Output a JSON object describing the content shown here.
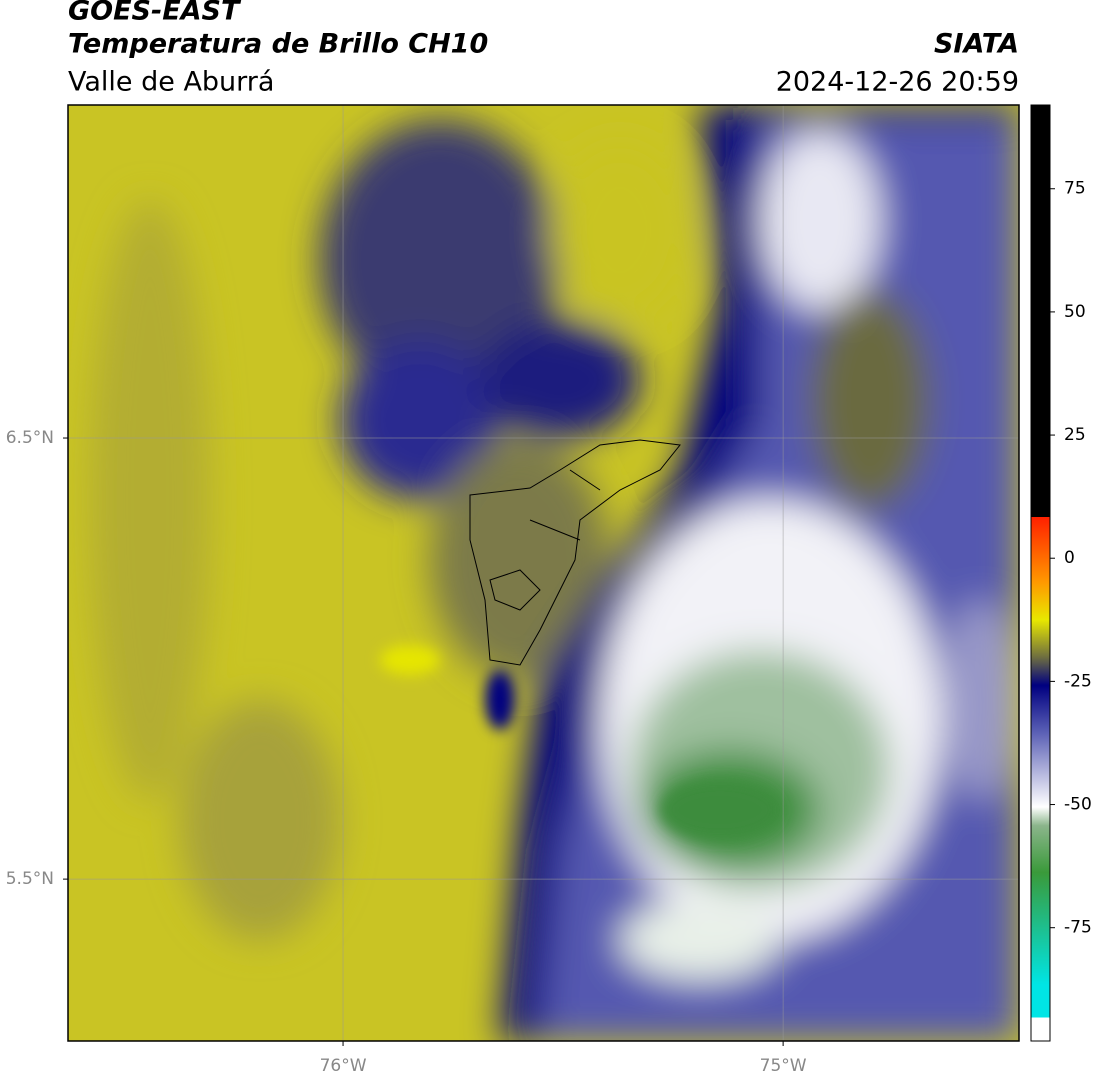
{
  "header": {
    "satellite": "GOES-EAST",
    "product": "Temperatura de Brillo CH10",
    "region": "Valle de Aburrá",
    "agency": "SIATA",
    "datetime": "2024-12-26 20:59"
  },
  "map": {
    "xlim": [
      -76.625,
      -74.464
    ],
    "ylim": [
      5.133,
      7.255
    ],
    "xticks": [
      {
        "value": -76,
        "label": "76°W"
      },
      {
        "value": -75,
        "label": "75°W"
      }
    ],
    "yticks": [
      {
        "value": 6.5,
        "label": "6.5°N"
      },
      {
        "value": 5.5,
        "label": "5.5°N"
      }
    ],
    "grid": true
  },
  "colorbar": {
    "lim": [
      -98,
      92
    ],
    "ticks": [
      75,
      50,
      25,
      0,
      -25,
      -50,
      -75
    ]
  }
}
